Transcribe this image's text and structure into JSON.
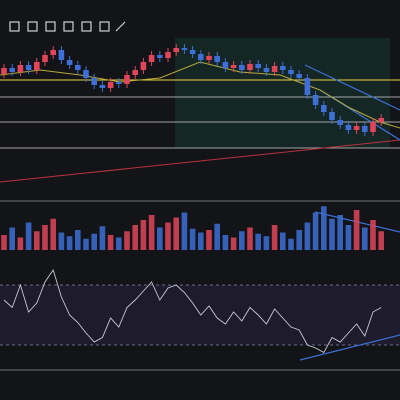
{
  "chart_data": [
    {
      "type": "candlestick",
      "up_color": "#e0455a",
      "down_color": "#3d6fd6",
      "ylim": [
        240,
        370
      ],
      "open": [
        326,
        332,
        328,
        335,
        330,
        338,
        345,
        350,
        340,
        335,
        330,
        322,
        315,
        312,
        318,
        316,
        325,
        330,
        338,
        345,
        342,
        348,
        352,
        350,
        346,
        340,
        344,
        338,
        332,
        335,
        330,
        336,
        332,
        328,
        334,
        330,
        326,
        322,
        305,
        295,
        288,
        280,
        275,
        270,
        274,
        268,
        278
      ],
      "high": [
        336,
        336,
        339,
        339,
        342,
        349,
        354,
        354,
        344,
        339,
        334,
        326,
        319,
        322,
        322,
        329,
        334,
        342,
        349,
        349,
        352,
        356,
        356,
        354,
        350,
        348,
        348,
        342,
        339,
        339,
        340,
        340,
        336,
        338,
        338,
        334,
        330,
        326,
        309,
        299,
        292,
        284,
        279,
        278,
        278,
        282,
        286
      ],
      "low": [
        322,
        324,
        324,
        326,
        326,
        334,
        341,
        336,
        331,
        326,
        318,
        311,
        308,
        308,
        312,
        312,
        321,
        326,
        334,
        338,
        338,
        344,
        346,
        342,
        336,
        336,
        334,
        328,
        328,
        326,
        326,
        328,
        324,
        324,
        326,
        322,
        318,
        301,
        291,
        284,
        276,
        271,
        266,
        266,
        264,
        264,
        274
      ],
      "close": [
        332,
        328,
        335,
        330,
        338,
        345,
        350,
        340,
        335,
        330,
        322,
        315,
        312,
        318,
        316,
        325,
        330,
        338,
        345,
        342,
        348,
        352,
        350,
        346,
        340,
        344,
        338,
        332,
        335,
        330,
        336,
        332,
        328,
        334,
        330,
        326,
        322,
        305,
        295,
        288,
        280,
        275,
        270,
        274,
        268,
        278,
        282
      ]
    },
    {
      "type": "bar",
      "ylim": [
        0,
        40
      ],
      "values": [
        12,
        18,
        10,
        22,
        15,
        20,
        25,
        14,
        11,
        16,
        9,
        13,
        19,
        12,
        10,
        15,
        20,
        24,
        28,
        18,
        22,
        26,
        30,
        17,
        14,
        16,
        21,
        12,
        10,
        15,
        18,
        13,
        11,
        20,
        14,
        9,
        16,
        22,
        30,
        35,
        25,
        28,
        20,
        32,
        18,
        24,
        15
      ]
    },
    {
      "type": "line",
      "color": "#c9c9d6",
      "ylim": [
        0,
        100
      ],
      "values": [
        60,
        55,
        70,
        52,
        58,
        72,
        80,
        62,
        50,
        45,
        38,
        32,
        35,
        48,
        42,
        55,
        60,
        66,
        72,
        60,
        68,
        70,
        65,
        58,
        50,
        56,
        48,
        44,
        52,
        46,
        55,
        50,
        44,
        54,
        48,
        42,
        40,
        30,
        28,
        25,
        35,
        32,
        38,
        44,
        36,
        52,
        55
      ]
    }
  ]
}
